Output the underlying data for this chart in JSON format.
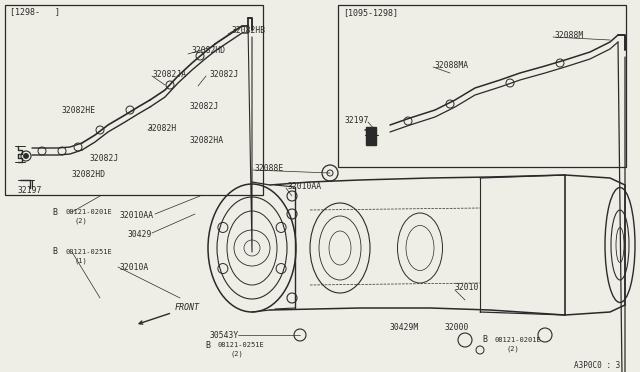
{
  "bg_color": "#eeeee6",
  "line_color": "#2a2a2a",
  "box1_label": "[1298-   ]",
  "box2_label": "[1095-1298]",
  "watermark": "A3P0C0 : 3",
  "figw": 6.4,
  "figh": 3.72,
  "dpi": 100
}
